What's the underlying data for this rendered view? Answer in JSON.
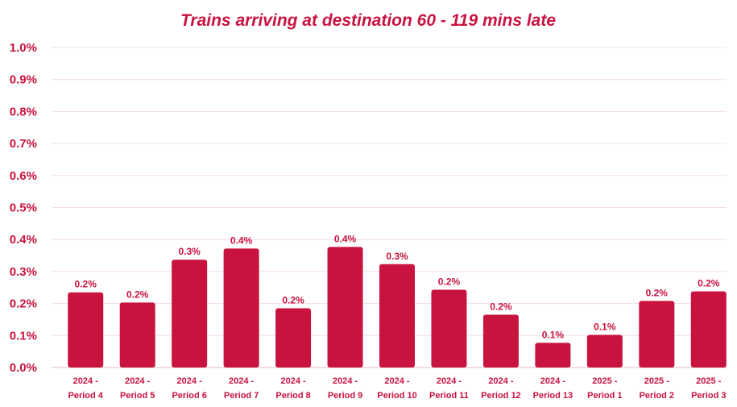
{
  "chart_data": {
    "type": "bar",
    "title": "Trains arriving at destination 60 - 119 mins late",
    "xlabel": "",
    "ylabel": "",
    "categories": [
      [
        "2024 -",
        "Period 4"
      ],
      [
        "2024 -",
        "Period 5"
      ],
      [
        "2024 -",
        "Period 6"
      ],
      [
        "2024 -",
        "Period 7"
      ],
      [
        "2024 -",
        "Period 8"
      ],
      [
        "2024 -",
        "Period 9"
      ],
      [
        "2024 -",
        "Period 10"
      ],
      [
        "2024 -",
        "Period 11"
      ],
      [
        "2024 -",
        "Period 12"
      ],
      [
        "2024 -",
        "Period 13"
      ],
      [
        "2025 -",
        "Period 1"
      ],
      [
        "2025 -",
        "Period 2"
      ],
      [
        "2025 -",
        "Period 3"
      ]
    ],
    "values": [
      0.235,
      0.203,
      0.337,
      0.372,
      0.185,
      0.377,
      0.323,
      0.243,
      0.165,
      0.077,
      0.102,
      0.208,
      0.238
    ],
    "data_labels": [
      "0.2%",
      "0.2%",
      "0.3%",
      "0.4%",
      "0.2%",
      "0.4%",
      "0.3%",
      "0.2%",
      "0.2%",
      "0.1%",
      "0.1%",
      "0.2%",
      "0.2%"
    ],
    "ylim": [
      0,
      1.0
    ],
    "yticks": [
      {
        "value": 0.0,
        "label": "0.0%"
      },
      {
        "value": 0.1,
        "label": "0.1%"
      },
      {
        "value": 0.2,
        "label": "0.2%"
      },
      {
        "value": 0.3,
        "label": "0.3%"
      },
      {
        "value": 0.4,
        "label": "0.4%"
      },
      {
        "value": 0.5,
        "label": "0.5%"
      },
      {
        "value": 0.6,
        "label": "0.6%"
      },
      {
        "value": 0.7,
        "label": "0.7%"
      },
      {
        "value": 0.8,
        "label": "0.8%"
      },
      {
        "value": 0.9,
        "label": "0.9%"
      },
      {
        "value": 1.0,
        "label": "1.0%"
      }
    ],
    "grid": true,
    "legend": "none",
    "colors": {
      "bar": "#c8133f",
      "text": "#c8133f",
      "grid": "#f3dde3",
      "axis": "#e8c9d1"
    }
  }
}
